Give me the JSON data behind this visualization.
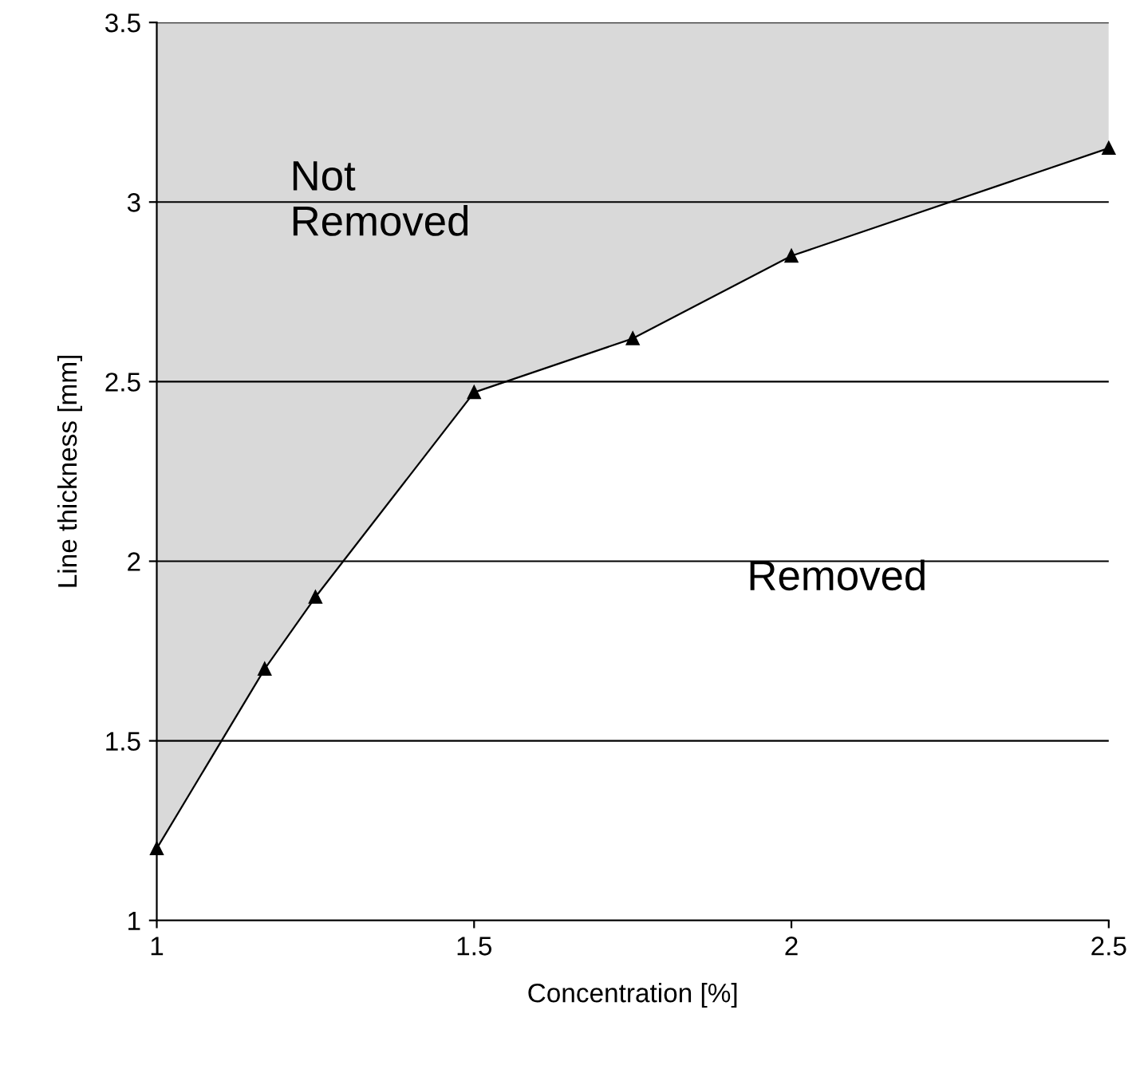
{
  "chart_data": {
    "type": "line",
    "xlabel": "Concentration [%]",
    "ylabel": "Line thickness [mm]",
    "x": [
      1,
      1.17,
      1.25,
      1.5,
      1.75,
      2,
      2.5
    ],
    "series": [
      {
        "color": "#000000",
        "values": [
          1.2,
          1.7,
          1.9,
          2.47,
          2.62,
          2.85,
          3.15
        ],
        "lower": [
          1.2,
          1.7,
          1.9,
          2.47,
          2.62,
          2.85,
          3.15
        ],
        "upper": [
          3.5,
          3.5,
          3.5,
          3.5,
          3.5,
          3.5,
          3.5
        ]
      }
    ],
    "marker": "triangle",
    "line_style": "solid",
    "xlim": [
      1,
      2.5
    ],
    "xticks": [
      1,
      1.5,
      2,
      2.5
    ],
    "ylim": [
      1,
      3.5
    ],
    "yticks": [
      1,
      1.5,
      2,
      2.5,
      3,
      3.5
    ],
    "grid": "y",
    "legend": false,
    "annotations": [
      "Not\nRemoved",
      "Removed"
    ]
  }
}
